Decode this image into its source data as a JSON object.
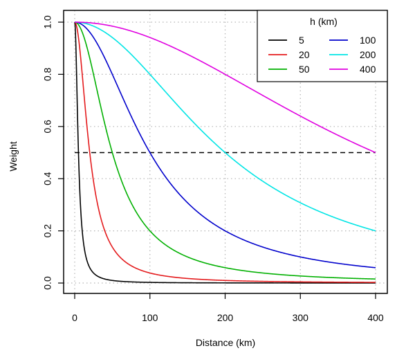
{
  "chart_data": {
    "type": "line",
    "title": "",
    "xlabel": "Distance (km)",
    "ylabel": "Weight",
    "xlim": [
      0,
      400
    ],
    "ylim": [
      0,
      1
    ],
    "xticks": [
      0,
      100,
      200,
      300,
      400
    ],
    "yticks": [
      0.0,
      0.2,
      0.4,
      0.6,
      0.8,
      1.0
    ],
    "ytick_labels": [
      "0.0",
      "0.2",
      "0.4",
      "0.6",
      "0.8",
      "1.0"
    ],
    "grid": true,
    "reference_line": {
      "y": 0.5,
      "style": "dashed",
      "color": "#000000"
    },
    "legend": {
      "title": "h (km)",
      "placement": "top-right",
      "columns": 2
    },
    "series": [
      {
        "name": "5",
        "color": "#000000",
        "h": 5,
        "x": [
          0,
          2,
          4,
          6,
          8,
          10,
          15,
          20,
          30,
          50,
          100,
          200,
          400
        ],
        "y": [
          1.0,
          0.86,
          0.61,
          0.41,
          0.28,
          0.2,
          0.1,
          0.06,
          0.027,
          0.01,
          0.0025,
          0.0006,
          0.0002
        ]
      },
      {
        "name": "20",
        "color": "#e41a1c",
        "h": 20,
        "x": [
          0,
          5,
          10,
          20,
          30,
          40,
          60,
          80,
          100,
          150,
          200,
          300,
          400
        ],
        "y": [
          1.0,
          0.94,
          0.8,
          0.5,
          0.31,
          0.2,
          0.1,
          0.06,
          0.038,
          0.017,
          0.01,
          0.004,
          0.0025
        ]
      },
      {
        "name": "50",
        "color": "#00b000",
        "h": 50,
        "x": [
          0,
          10,
          25,
          50,
          75,
          100,
          150,
          200,
          250,
          300,
          400
        ],
        "y": [
          1.0,
          0.96,
          0.8,
          0.5,
          0.31,
          0.2,
          0.1,
          0.06,
          0.038,
          0.027,
          0.015
        ]
      },
      {
        "name": "100",
        "color": "#0000cc",
        "h": 100,
        "x": [
          0,
          20,
          50,
          75,
          100,
          150,
          200,
          250,
          300,
          350,
          400
        ],
        "y": [
          1.0,
          0.96,
          0.8,
          0.64,
          0.5,
          0.31,
          0.2,
          0.14,
          0.1,
          0.075,
          0.06
        ]
      },
      {
        "name": "200",
        "color": "#00e5e5",
        "h": 200,
        "x": [
          0,
          50,
          100,
          150,
          200,
          250,
          300,
          350,
          400
        ],
        "y": [
          1.0,
          0.94,
          0.8,
          0.64,
          0.5,
          0.39,
          0.31,
          0.25,
          0.2
        ]
      },
      {
        "name": "400",
        "color": "#e000e0",
        "h": 400,
        "x": [
          0,
          50,
          100,
          150,
          200,
          250,
          300,
          350,
          400
        ],
        "y": [
          1.0,
          0.985,
          0.94,
          0.88,
          0.8,
          0.72,
          0.64,
          0.57,
          0.5
        ]
      }
    ]
  }
}
